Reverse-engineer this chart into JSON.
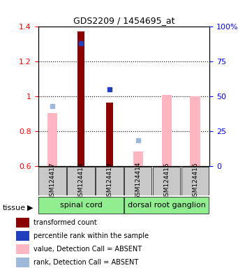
{
  "title": "GDS2209 / 1454695_at",
  "samples": [
    "GSM124417",
    "GSM124418",
    "GSM124419",
    "GSM124414",
    "GSM124415",
    "GSM124416"
  ],
  "tissues": [
    {
      "name": "spinal cord",
      "samples": [
        0,
        1,
        2
      ]
    },
    {
      "name": "dorsal root ganglion",
      "samples": [
        3,
        4,
        5
      ]
    }
  ],
  "red_bars": [
    null,
    1.375,
    0.965,
    null,
    null,
    null
  ],
  "pink_bars": [
    0.905,
    null,
    null,
    0.685,
    1.01,
    1.0
  ],
  "blue_squares": [
    null,
    1.305,
    1.04,
    null,
    null,
    null
  ],
  "lavender_squares": [
    0.945,
    null,
    null,
    0.75,
    null,
    null
  ],
  "ylim_left": [
    0.6,
    1.4
  ],
  "ylim_right": [
    0,
    100
  ],
  "yticks_left": [
    0.6,
    0.8,
    1.0,
    1.2,
    1.4
  ],
  "ytick_labels_left": [
    "0.6",
    "0.8",
    "1",
    "1.2",
    "1.4"
  ],
  "yticks_right": [
    0,
    25,
    50,
    75,
    100
  ],
  "ytick_labels_right": [
    "0",
    "25",
    "50",
    "75",
    "100%"
  ],
  "bar_width": 0.35,
  "grid_lines": [
    0.8,
    1.0,
    1.2
  ],
  "tissue_label": "tissue",
  "legend_items": [
    {
      "label": "transformed count",
      "color": "#8B0000",
      "type": "rect"
    },
    {
      "label": "percentile rank within the sample",
      "color": "#00008B",
      "type": "rect"
    },
    {
      "label": "value, Detection Call = ABSENT",
      "color": "#FFB6C1",
      "type": "rect"
    },
    {
      "label": "rank, Detection Call = ABSENT",
      "color": "#B0C4DE",
      "type": "rect"
    }
  ],
  "red_color": "#8B0000",
  "pink_color": "#FFB6C1",
  "blue_color": "#1F3FBF",
  "lavender_color": "#9EB8D9",
  "tissue_bg_color": "#90EE90",
  "sample_bg_color": "#C8C8C8",
  "plot_bg_color": "#FFFFFF"
}
